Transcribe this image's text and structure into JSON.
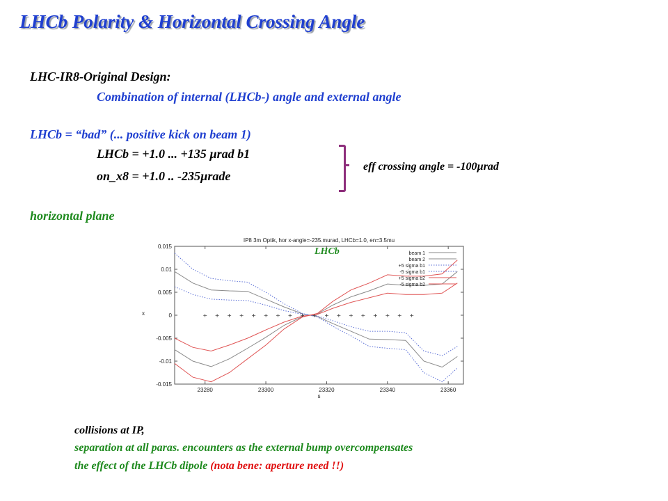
{
  "title": "LHCb Polarity & Horizontal Crossing Angle",
  "lines": {
    "design_heading": "LHC-IR8-Original Design:",
    "design_sub": "Combination of internal (LHCb-) angle and external angle",
    "lhcb_bad": "LHCb = “bad” (... positive kick on beam 1)",
    "lhcb_value": "LHCb = +1.0   ... +135 µrad b1",
    "onx8_value": "on_x8 = +1.0   ..  -235µrade",
    "plane": "horizontal plane"
  },
  "effective_angle": "eff crossing angle = -100µrad",
  "plot_overlay_label": "LHCb",
  "chart_data": {
    "type": "line",
    "title": "IP8 3m Optik, hor x-angle=-235.murad, LHCb=1.0, en=3.5mu",
    "xlabel": "s",
    "ylabel": "x",
    "xlim": [
      23270,
      23365
    ],
    "ylim": [
      -0.015,
      0.015
    ],
    "x_ticks": [
      "23280",
      "23300",
      "23320",
      "23340",
      "23360"
    ],
    "y_ticks": [
      "0.015",
      "0.01",
      "0.005",
      "0",
      "-0.005",
      "-0.01",
      "-0.015"
    ],
    "legend_position": "top-right",
    "colors": {
      "beam": "#8a8a8a",
      "sigma_b1": "#5b6fd6",
      "sigma_b2": "#e05555",
      "markers": "#333333"
    },
    "series": [
      {
        "name": "beam 1",
        "style": "solid",
        "color": "#8a8a8a",
        "x": [
          23270,
          23276,
          23282,
          23288,
          23294,
          23300,
          23306,
          23312,
          23314.5,
          23317,
          23322,
          23328,
          23334,
          23340,
          23346,
          23352,
          23358,
          23363
        ],
        "y": [
          0.0095,
          0.007,
          0.0055,
          0.0053,
          0.0052,
          0.0035,
          0.0018,
          0.0003,
          0.0,
          -0.0003,
          -0.0018,
          -0.0035,
          -0.0052,
          -0.0053,
          -0.0055,
          -0.01,
          -0.0113,
          -0.009
        ]
      },
      {
        "name": "beam 2",
        "style": "solid",
        "color": "#8a8a8a",
        "x": [
          23270,
          23276,
          23282,
          23288,
          23294,
          23300,
          23306,
          23312,
          23314.5,
          23317,
          23322,
          23328,
          23334,
          23340,
          23346,
          23352,
          23358,
          23363
        ],
        "y": [
          -0.0075,
          -0.01,
          -0.0112,
          -0.0095,
          -0.0072,
          -0.0048,
          -0.0022,
          -0.0003,
          0.0,
          0.0003,
          0.0022,
          0.004,
          0.0053,
          0.0068,
          0.0065,
          0.0065,
          0.0068,
          0.0095
        ]
      },
      {
        "name": "+5 sigma b1",
        "style": "dotted",
        "color": "#5b6fd6",
        "x": [
          23270,
          23276,
          23282,
          23288,
          23294,
          23300,
          23306,
          23312,
          23314.5,
          23317,
          23322,
          23328,
          23334,
          23340,
          23346,
          23352,
          23358,
          23363
        ],
        "y": [
          0.0135,
          0.01,
          0.008,
          0.0075,
          0.0072,
          0.005,
          0.0025,
          0.0004,
          0.0,
          -0.0002,
          -0.0012,
          -0.0025,
          -0.0035,
          -0.0035,
          -0.0038,
          -0.0078,
          -0.0088,
          -0.0068
        ]
      },
      {
        "name": "-5 sigma b1",
        "style": "dotted",
        "color": "#5b6fd6",
        "x": [
          23270,
          23276,
          23282,
          23288,
          23294,
          23300,
          23306,
          23312,
          23314.5,
          23317,
          23322,
          23328,
          23334,
          23340,
          23346,
          23352,
          23358,
          23363
        ],
        "y": [
          0.0062,
          0.0045,
          0.0035,
          0.0033,
          0.0032,
          0.0022,
          0.001,
          0.0002,
          0.0,
          -0.0004,
          -0.0024,
          -0.0045,
          -0.0068,
          -0.0072,
          -0.0075,
          -0.0125,
          -0.0145,
          -0.0115
        ]
      },
      {
        "name": "+5 sigma b2",
        "style": "solid",
        "color": "#e05555",
        "x": [
          23270,
          23276,
          23282,
          23288,
          23294,
          23300,
          23306,
          23312,
          23314.5,
          23317,
          23322,
          23328,
          23334,
          23340,
          23346,
          23352,
          23358,
          23363
        ],
        "y": [
          -0.005,
          -0.007,
          -0.0078,
          -0.0065,
          -0.005,
          -0.0032,
          -0.0015,
          -0.0002,
          0.0,
          0.0004,
          0.003,
          0.0055,
          0.007,
          0.0088,
          0.0085,
          0.0085,
          0.009,
          0.012
        ]
      },
      {
        "name": "-5 sigma b2",
        "style": "solid",
        "color": "#e05555",
        "x": [
          23270,
          23276,
          23282,
          23288,
          23294,
          23300,
          23306,
          23312,
          23314.5,
          23317,
          23322,
          23328,
          23334,
          23340,
          23346,
          23352,
          23358,
          23363
        ],
        "y": [
          -0.0105,
          -0.0135,
          -0.0145,
          -0.0125,
          -0.0095,
          -0.0065,
          -0.003,
          -0.0004,
          0.0,
          0.0002,
          0.0015,
          0.0028,
          0.0038,
          0.0048,
          0.0045,
          0.0045,
          0.0048,
          0.007
        ]
      }
    ],
    "markers": {
      "symbol": "+",
      "y": 0,
      "x": [
        23280,
        23284,
        23288,
        23292,
        23296,
        23300,
        23304,
        23308,
        23312,
        23316,
        23320,
        23324,
        23328,
        23332,
        23336,
        23340,
        23344,
        23348
      ]
    }
  },
  "footer": {
    "line1": "collisions at IP,",
    "line2": "separation at all paras. encounters as the external bump overcompensates",
    "line3a": "the effect of the LHCb  dipole ",
    "line3b": "(nota bene: aperture need !!)"
  }
}
